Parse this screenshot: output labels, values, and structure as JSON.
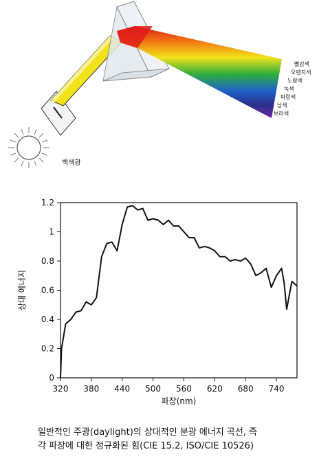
{
  "prism_figure": {
    "light_label": "백색광",
    "spectrum_labels": [
      "빨강색",
      "오렌지색",
      "노랑색",
      "녹색",
      "파랑색",
      "남색",
      "보라색"
    ],
    "spectrum_colors": [
      "#e01b1b",
      "#f07a12",
      "#f2e21a",
      "#2fae3a",
      "#1f63c8",
      "#2a2f8f",
      "#6a2a9a"
    ]
  },
  "chart_data": {
    "type": "line",
    "title": "",
    "xlabel": "파장(nm)",
    "ylabel": "상대 에너지",
    "xlim": [
      320,
      780
    ],
    "ylim": [
      0,
      1.2
    ],
    "xticks": [
      320,
      380,
      440,
      500,
      560,
      620,
      680,
      740
    ],
    "yticks": [
      0,
      0.2,
      0.4,
      0.6,
      0.8,
      1,
      1.2
    ],
    "grid": false,
    "line_color": "#111111",
    "x": [
      320,
      322,
      330,
      340,
      350,
      360,
      370,
      380,
      390,
      400,
      410,
      420,
      430,
      440,
      450,
      460,
      470,
      480,
      490,
      500,
      510,
      520,
      530,
      540,
      550,
      560,
      570,
      580,
      590,
      600,
      610,
      620,
      630,
      640,
      650,
      660,
      670,
      680,
      690,
      700,
      710,
      720,
      730,
      740,
      750,
      755,
      760,
      770,
      780
    ],
    "y": [
      0.0,
      0.2,
      0.37,
      0.4,
      0.45,
      0.46,
      0.52,
      0.5,
      0.55,
      0.83,
      0.92,
      0.93,
      0.87,
      1.05,
      1.17,
      1.18,
      1.15,
      1.16,
      1.08,
      1.09,
      1.08,
      1.05,
      1.08,
      1.04,
      1.04,
      1.0,
      0.96,
      0.96,
      0.89,
      0.9,
      0.89,
      0.87,
      0.83,
      0.83,
      0.8,
      0.81,
      0.8,
      0.82,
      0.78,
      0.7,
      0.72,
      0.75,
      0.62,
      0.7,
      0.75,
      0.65,
      0.47,
      0.66,
      0.63
    ]
  },
  "caption": {
    "line1": "일반적인 주광(daylight)의 상대적인 분광 에너지 곡선, 즉",
    "line2": "각 파장에 대한 정규화된 힘(CIE 15.2, ISO/CIE 10526)"
  }
}
